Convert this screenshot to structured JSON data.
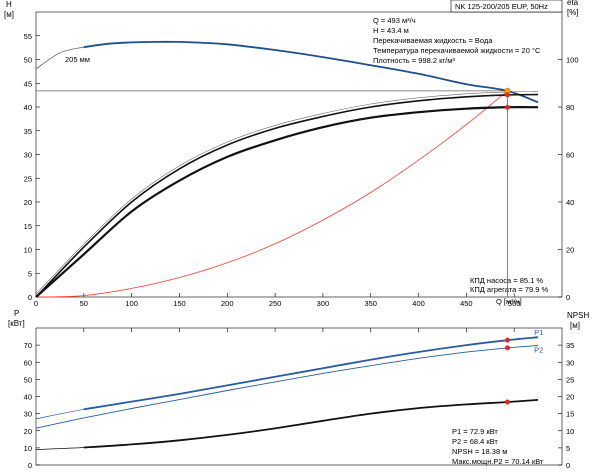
{
  "header": {
    "pump_model": "NK 125-200/205 EUP, 50Hz"
  },
  "top_panel": {
    "left_axis_title": "H",
    "left_axis_unit": "[м]",
    "right_axis_title": "eta",
    "right_axis_unit": "[%]",
    "x_axis_title": "Q [м³/ч]",
    "curve_label": "205 мм",
    "duty_info": [
      "Q = 493 м³/ч",
      "H = 43.4 м",
      "Перекачиваемая жидкость = Вода",
      "Температура перекачиваемой жидкости = 20 °C",
      "Плотность = 998.2 кг/м³"
    ],
    "eff_info": [
      "КПД насоса = 85.1 %",
      "КПД агрегата = 79.9 %"
    ]
  },
  "bottom_panel": {
    "left_axis_title": "P",
    "left_axis_unit": "[кВт]",
    "right_axis_title": "NPSH",
    "right_axis_unit": "[м]",
    "power_info": [
      "P1 = 72.9 кВт",
      "P2 = 68.4 кВт",
      "NPSH = 18.38 м",
      "Макс.мощн.P2 = 70.14 кВт"
    ]
  },
  "colors": {
    "head_curve": "#1f4e8c",
    "power_curve": "#2a5aa0",
    "efficiency_curve": "#111111",
    "system_curve": "#ff3b30",
    "duty_point_top": "#ffa500",
    "duty_point": "#e32626",
    "duty_line": "#666666"
  },
  "chart_data": [
    {
      "type": "line",
      "title": "",
      "xlabel": "Q [м³/ч]",
      "ylabel": "H [м]",
      "xlim": [
        0,
        550
      ],
      "ylim": [
        0,
        60
      ],
      "xticks": [
        50,
        100,
        150,
        200,
        250,
        300,
        350,
        400,
        450,
        500
      ],
      "yticks": [
        0,
        5,
        10,
        15,
        20,
        25,
        30,
        35,
        40,
        45,
        50,
        55
      ],
      "y2label": "eta [%]",
      "y2lim": [
        0,
        120
      ],
      "y2ticks": [
        0,
        20,
        40,
        60,
        80,
        100
      ],
      "series": [
        {
          "name": "205 мм",
          "axis": "left",
          "x": [
            0,
            25,
            50,
            75,
            100,
            125,
            150,
            175,
            200,
            250,
            300,
            350,
            400,
            450,
            493,
            525
          ],
          "y": [
            48.0,
            51.4,
            52.6,
            53.3,
            53.6,
            53.7,
            53.7,
            53.5,
            53.2,
            52.0,
            50.5,
            48.8,
            47.0,
            44.8,
            43.4,
            41.0
          ]
        },
        {
          "axis": "left",
          "x": [
            0,
            50,
            100,
            150,
            200,
            250,
            300,
            350,
            400,
            450,
            493
          ],
          "y": [
            0,
            0.3,
            1.8,
            4.1,
            7.2,
            11.2,
            16.2,
            22.0,
            28.8,
            36.3,
            43.4
          ]
        },
        {
          "name": "КПД насоса",
          "axis": "right",
          "x": [
            0,
            50,
            100,
            150,
            200,
            250,
            300,
            350,
            400,
            450,
            493,
            525
          ],
          "y": [
            0,
            21,
            40,
            54,
            64,
            71,
            76,
            80,
            82.6,
            84.3,
            85.1,
            85.2
          ]
        },
        {
          "name": "КПД агрегата",
          "axis": "right",
          "x": [
            0,
            50,
            100,
            150,
            200,
            250,
            300,
            350,
            400,
            450,
            493,
            525
          ],
          "y": [
            0,
            18,
            36,
            49,
            59,
            66,
            71.5,
            75.5,
            77.8,
            79.3,
            79.9,
            79.9
          ]
        }
      ],
      "duty_point": {
        "x": 493,
        "y": 43.4
      },
      "grid": false
    },
    {
      "type": "line",
      "title": "",
      "xlabel": "",
      "ylabel": "P [кВт]",
      "xlim": [
        0,
        550
      ],
      "ylim": [
        0,
        80
      ],
      "yticks": [
        0,
        10,
        20,
        30,
        40,
        50,
        60,
        70
      ],
      "y2label": "NPSH [м]",
      "y2lim": [
        0,
        40
      ],
      "y2ticks": [
        0,
        5,
        10,
        15,
        20,
        25,
        30,
        35
      ],
      "series": [
        {
          "name": "P1",
          "axis": "left",
          "x": [
            0,
            50,
            100,
            150,
            200,
            250,
            300,
            350,
            400,
            450,
            493,
            525
          ],
          "y": [
            27.0,
            32.5,
            37.0,
            41.5,
            46.5,
            51.5,
            56.5,
            61.5,
            66.0,
            70.0,
            72.9,
            74.6
          ]
        },
        {
          "name": "P2",
          "axis": "left",
          "x": [
            0,
            50,
            100,
            150,
            200,
            250,
            300,
            350,
            400,
            450,
            493,
            525
          ],
          "y": [
            21.5,
            27.5,
            33.0,
            38.2,
            43.5,
            48.5,
            53.5,
            58.0,
            62.3,
            65.9,
            68.4,
            69.8
          ]
        },
        {
          "name": "NPSH",
          "axis": "right",
          "x": [
            0,
            50,
            100,
            150,
            200,
            250,
            300,
            350,
            400,
            450,
            493,
            525
          ],
          "y": [
            4.5,
            5.1,
            6.0,
            7.2,
            8.8,
            10.7,
            12.9,
            15.0,
            16.6,
            17.7,
            18.38,
            19.0
          ]
        }
      ],
      "duty_points": [
        {
          "series": "P1",
          "x": 493,
          "y": 72.9
        },
        {
          "series": "P2",
          "x": 493,
          "y": 68.4
        },
        {
          "series": "NPSH",
          "x": 493,
          "y": 18.38
        }
      ],
      "grid": false
    }
  ]
}
